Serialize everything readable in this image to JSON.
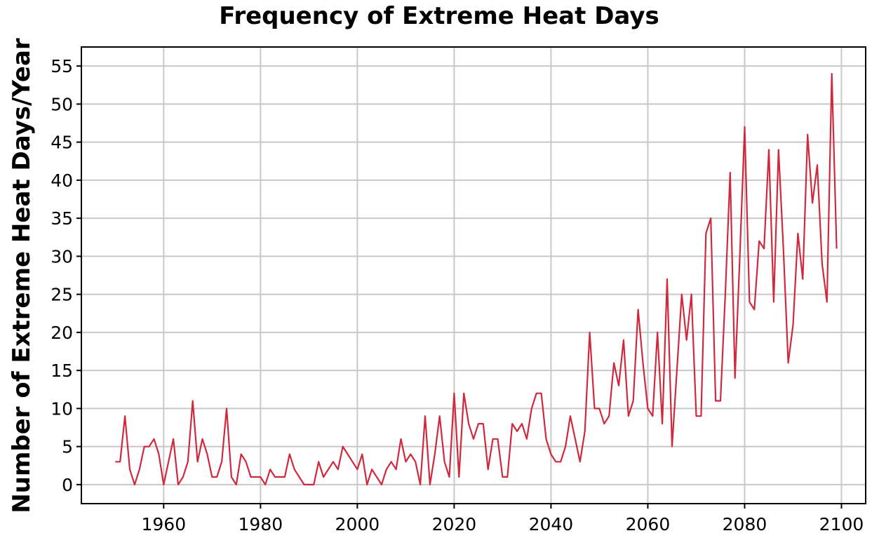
{
  "chart_data": {
    "type": "line",
    "title": "Frequency of Extreme Heat Days",
    "xlabel": "",
    "ylabel": "Number of Extreme Heat Days/Year",
    "xlim": [
      1943,
      2105
    ],
    "ylim": [
      -2.5,
      57.5
    ],
    "x_ticks": [
      1960,
      1980,
      2000,
      2020,
      2040,
      2060,
      2080,
      2100
    ],
    "y_ticks": [
      0,
      5,
      10,
      15,
      20,
      25,
      30,
      35,
      40,
      45,
      50,
      55
    ],
    "grid": true,
    "legend": "none",
    "series_color": "#d0283c",
    "series": [
      {
        "x": [
          1950,
          1951,
          1952,
          1953,
          1954,
          1955,
          1956,
          1957,
          1958,
          1959,
          1960,
          1961,
          1962,
          1963,
          1964,
          1965,
          1966,
          1967,
          1968,
          1969,
          1970,
          1971,
          1972,
          1973,
          1974,
          1975,
          1976,
          1977,
          1978,
          1979,
          1980,
          1981,
          1982,
          1983,
          1984,
          1985,
          1986,
          1987,
          1988,
          1989,
          1990,
          1991,
          1992,
          1993,
          1994,
          1995,
          1996,
          1997,
          1998,
          1999,
          2000,
          2001,
          2002,
          2003,
          2004,
          2005,
          2006,
          2007,
          2008,
          2009,
          2010,
          2011,
          2012,
          2013,
          2014,
          2015,
          2016,
          2017,
          2018,
          2019,
          2020,
          2021,
          2022,
          2023,
          2024,
          2025,
          2026,
          2027,
          2028,
          2029,
          2030,
          2031,
          2032,
          2033,
          2034,
          2035,
          2036,
          2037,
          2038,
          2039,
          2040,
          2041,
          2042,
          2043,
          2044,
          2045,
          2046,
          2047,
          2048,
          2049,
          2050,
          2051,
          2052,
          2053,
          2054,
          2055,
          2056,
          2057,
          2058,
          2059,
          2060,
          2061,
          2062,
          2063,
          2064,
          2065,
          2066,
          2067,
          2068,
          2069,
          2070,
          2071,
          2072,
          2073,
          2074,
          2075,
          2076,
          2077,
          2078,
          2079,
          2080,
          2081,
          2082,
          2083,
          2084,
          2085,
          2086,
          2087,
          2088,
          2089,
          2090,
          2091,
          2092,
          2093,
          2094,
          2095,
          2096,
          2097,
          2098,
          2099
        ],
        "values": [
          3,
          3,
          9,
          2,
          0,
          2,
          5,
          5,
          6,
          4,
          0,
          3,
          6,
          0,
          1,
          3,
          11,
          3,
          6,
          4,
          1,
          1,
          3,
          10,
          1,
          0,
          4,
          3,
          1,
          1,
          1,
          0,
          2,
          1,
          1,
          1,
          4,
          2,
          1,
          0,
          0,
          0,
          3,
          1,
          2,
          3,
          2,
          5,
          4,
          3,
          2,
          4,
          0,
          2,
          1,
          0,
          2,
          3,
          2,
          6,
          3,
          4,
          3,
          0,
          9,
          0,
          4,
          9,
          3,
          1,
          12,
          1,
          12,
          8,
          6,
          8,
          8,
          2,
          6,
          6,
          1,
          1,
          8,
          7,
          8,
          6,
          10,
          12,
          12,
          6,
          4,
          3,
          3,
          5,
          9,
          6,
          3,
          7,
          20,
          10,
          10,
          8,
          9,
          16,
          13,
          19,
          9,
          11,
          23,
          16,
          10,
          9,
          20,
          8,
          27,
          5,
          15,
          25,
          19,
          25,
          9,
          9,
          33,
          35,
          11,
          11,
          25,
          41,
          14,
          30,
          47,
          24,
          23,
          32,
          31,
          44,
          24,
          44,
          31,
          16,
          21,
          33,
          27,
          46,
          37,
          42,
          29,
          24,
          54,
          31
        ]
      }
    ]
  }
}
